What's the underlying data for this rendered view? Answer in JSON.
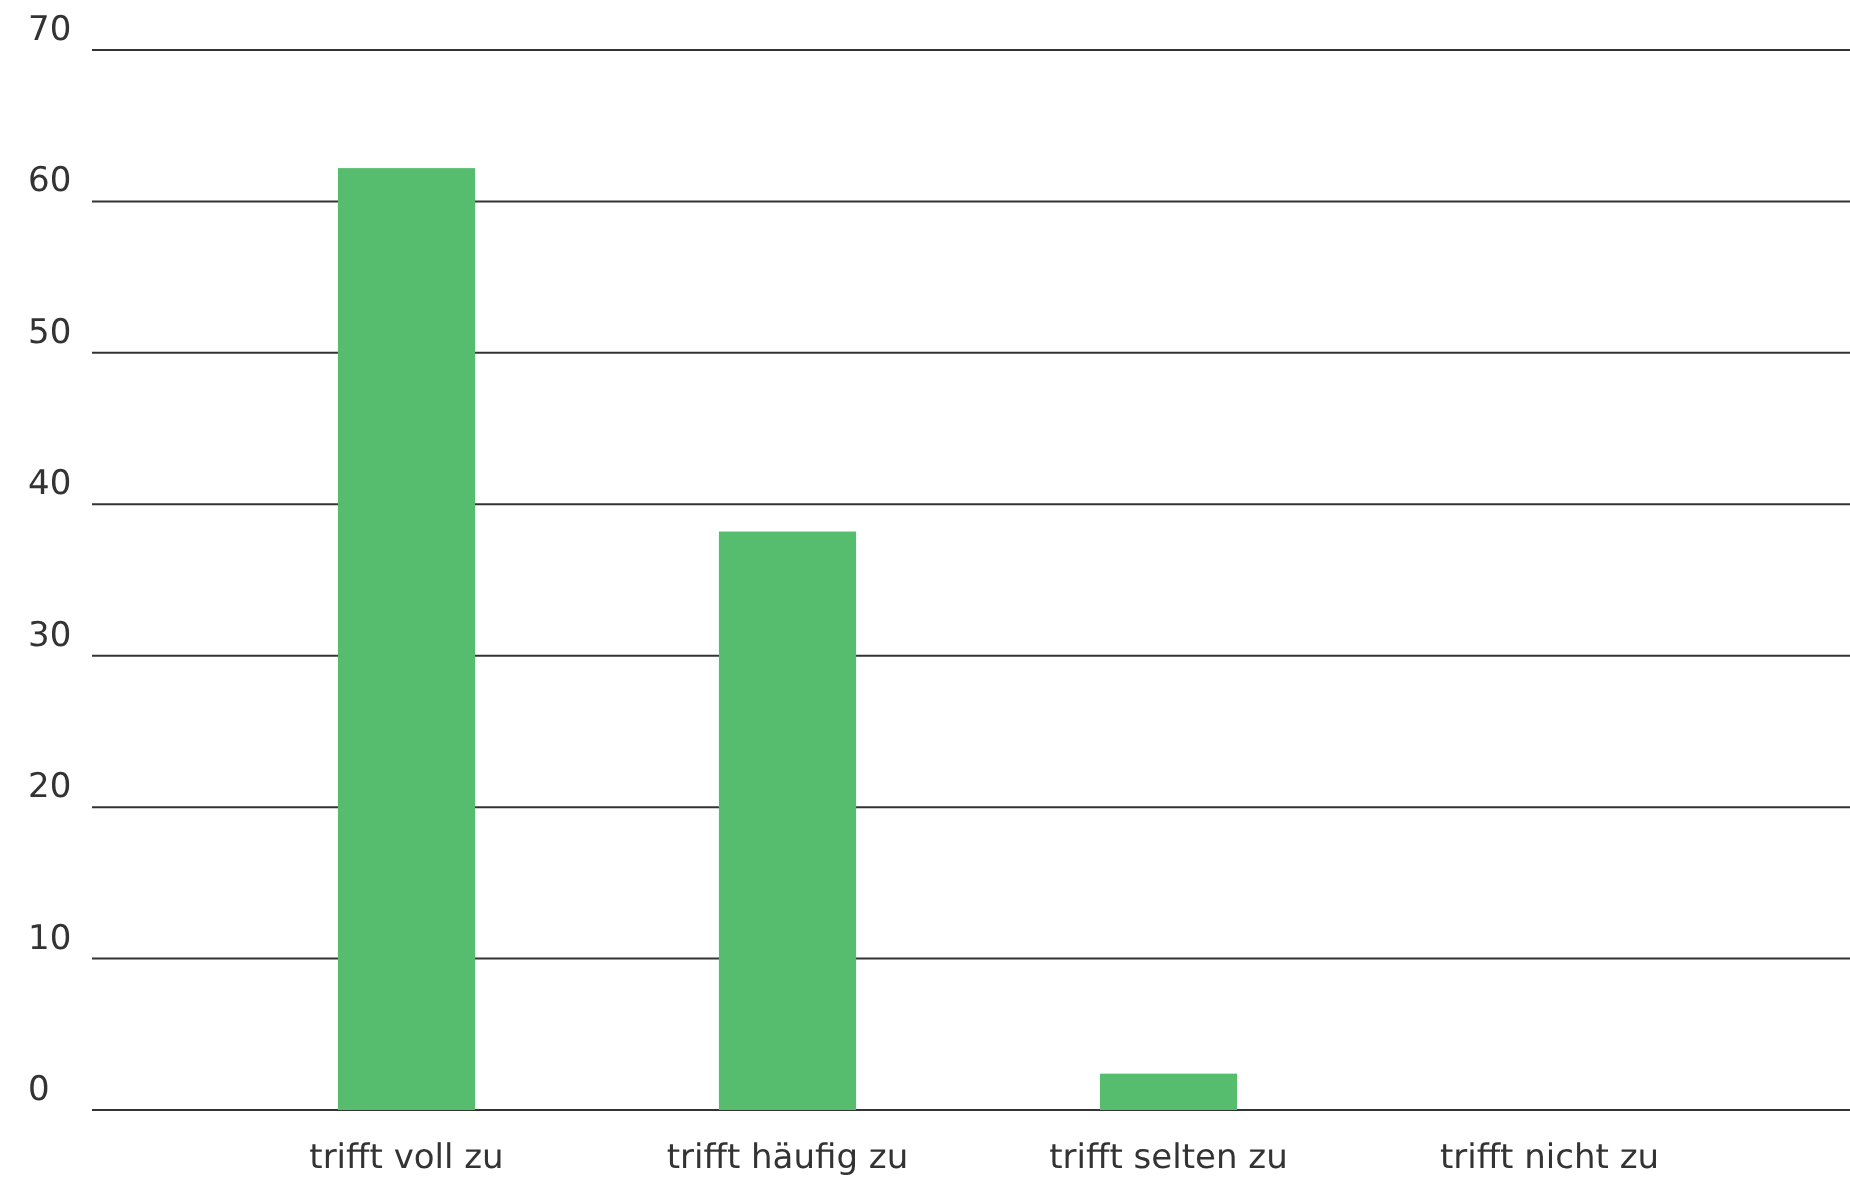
{
  "chart_data": {
    "type": "bar",
    "categories": [
      "trifft voll zu",
      "trifft häufig zu",
      "trifft selten zu",
      "trifft nicht zu"
    ],
    "values": [
      62.2,
      38.2,
      2.4,
      0
    ],
    "color": "#56bd6e",
    "ylim": [
      0,
      70
    ],
    "yticks": [
      0,
      10,
      20,
      30,
      40,
      50,
      60,
      70
    ],
    "grid": "y"
  }
}
